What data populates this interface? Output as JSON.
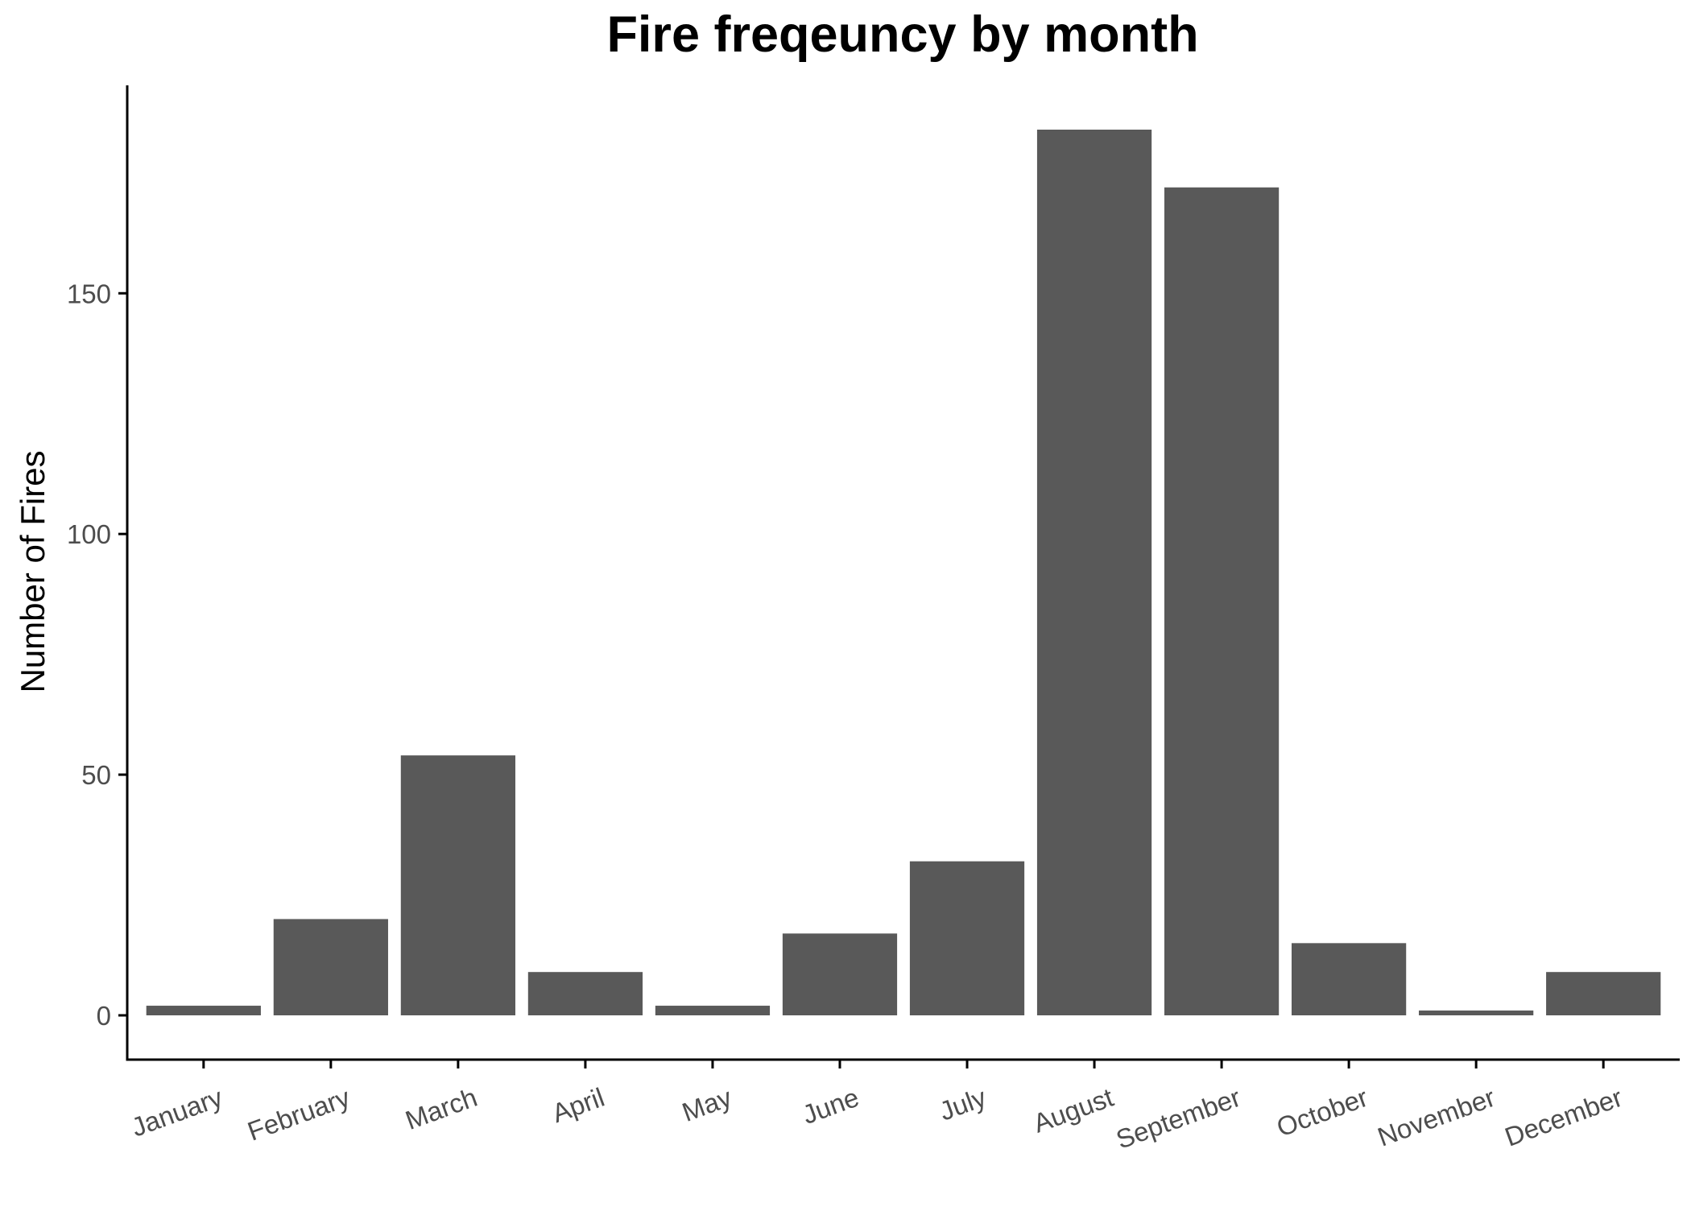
{
  "chart_data": {
    "type": "bar",
    "title": "Fire freqeuncy by month",
    "xlabel": "",
    "ylabel": "Number of Fires",
    "categories": [
      "January",
      "February",
      "March",
      "April",
      "May",
      "June",
      "July",
      "August",
      "September",
      "October",
      "November",
      "December"
    ],
    "values": [
      2,
      20,
      54,
      9,
      2,
      17,
      32,
      184,
      172,
      15,
      1,
      9
    ],
    "ylim": [
      -9.2,
      193.2
    ],
    "yticks": [
      0,
      50,
      100,
      150
    ],
    "grid": false,
    "legend": "none",
    "colors": {
      "bar": "#595959",
      "axis": "#000000",
      "tick_label": "#4d4d4d",
      "title": "#000000"
    }
  }
}
